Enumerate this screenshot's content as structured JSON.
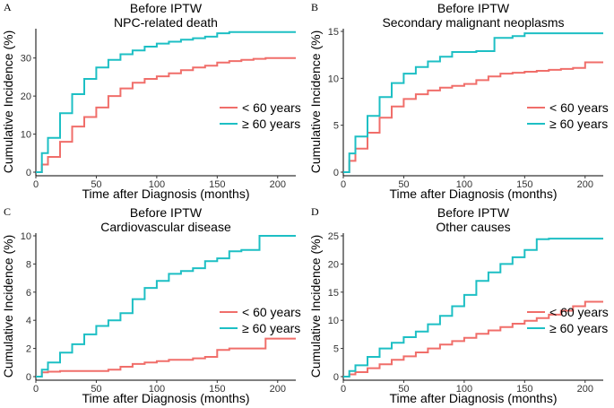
{
  "colors": {
    "under60": "#F06E6A",
    "over60": "#1DBFC4"
  },
  "chart_data": [
    {
      "type": "line",
      "panel": "A",
      "title": "Before IPTW",
      "subtitle": "NPC-related death",
      "xlabel": "Time after Diagnosis (months)",
      "ylabel": "Cumulative Incidence (%)",
      "xlim": [
        0,
        215
      ],
      "ylim": [
        0,
        37
      ],
      "xticks": [
        0,
        50,
        100,
        150,
        200
      ],
      "yticks": [
        0,
        10,
        20,
        30
      ],
      "legend_position": "right",
      "series": [
        {
          "name": "< 60 years",
          "color_key": "under60",
          "x": [
            0,
            5,
            10,
            20,
            30,
            40,
            50,
            60,
            70,
            80,
            90,
            100,
            110,
            120,
            130,
            140,
            150,
            160,
            170,
            180,
            190,
            200,
            215
          ],
          "y": [
            0,
            2,
            4,
            8,
            12,
            14.5,
            17,
            20,
            22,
            23.5,
            24.5,
            25.2,
            26,
            26.8,
            27.5,
            28,
            28.8,
            29.2,
            29.5,
            29.8,
            30,
            30,
            30
          ]
        },
        {
          "name": "≥ 60 years",
          "color_key": "over60",
          "x": [
            0,
            5,
            10,
            20,
            30,
            40,
            50,
            60,
            70,
            80,
            90,
            100,
            110,
            120,
            130,
            140,
            150,
            160,
            170,
            180,
            190,
            200,
            215
          ],
          "y": [
            0,
            5,
            9,
            15.5,
            20.5,
            24.5,
            27.5,
            29.5,
            31,
            32,
            33,
            33.8,
            34.3,
            34.8,
            35.2,
            35.6,
            36.5,
            36.8,
            36.8,
            36.8,
            36.8,
            36.8,
            36.8
          ]
        }
      ]
    },
    {
      "type": "line",
      "panel": "B",
      "title": "Before IPTW",
      "subtitle": "Secondary malignant neoplasms",
      "xlabel": "Time after Diagnosis (months)",
      "ylabel": "Cumulative Incidence (%)",
      "xlim": [
        0,
        215
      ],
      "ylim": [
        0,
        15
      ],
      "xticks": [
        0,
        50,
        100,
        150,
        200
      ],
      "yticks": [
        0,
        5,
        10,
        15
      ],
      "legend_position": "right",
      "series": [
        {
          "name": "< 60 years",
          "color_key": "under60",
          "x": [
            0,
            5,
            10,
            20,
            30,
            40,
            50,
            60,
            70,
            80,
            90,
            100,
            110,
            120,
            130,
            140,
            150,
            160,
            170,
            180,
            190,
            200,
            215
          ],
          "y": [
            0,
            1.2,
            2.5,
            4.2,
            5.8,
            7,
            7.8,
            8.3,
            8.7,
            9,
            9.2,
            9.4,
            9.8,
            10.2,
            10.5,
            10.6,
            10.7,
            10.8,
            10.9,
            11,
            11.1,
            11.7,
            11.7
          ]
        },
        {
          "name": "≥ 60 years",
          "color_key": "over60",
          "x": [
            0,
            5,
            10,
            20,
            30,
            40,
            50,
            60,
            70,
            80,
            90,
            100,
            110,
            120,
            125,
            130,
            140,
            150,
            160,
            170,
            180,
            190,
            215
          ],
          "y": [
            0,
            2,
            3.8,
            6,
            8,
            9.5,
            10.5,
            11.2,
            11.8,
            12.3,
            12.8,
            12.8,
            12.9,
            12.9,
            14.3,
            14.3,
            14.5,
            14.8,
            14.8,
            14.8,
            14.8,
            14.8,
            14.8
          ]
        }
      ]
    },
    {
      "type": "line",
      "panel": "C",
      "title": "Before IPTW",
      "subtitle": "Cardiovascular disease",
      "xlabel": "Time after Diagnosis (months)",
      "ylabel": "Cumulative Incidence (%)",
      "xlim": [
        0,
        215
      ],
      "ylim": [
        0,
        10
      ],
      "xticks": [
        0,
        50,
        100,
        150,
        200
      ],
      "yticks": [
        0,
        2,
        4,
        6,
        8,
        10
      ],
      "legend_position": "right",
      "series": [
        {
          "name": "< 60 years",
          "color_key": "under60",
          "x": [
            0,
            5,
            10,
            20,
            30,
            40,
            50,
            60,
            70,
            80,
            90,
            100,
            110,
            120,
            130,
            140,
            150,
            160,
            170,
            180,
            190,
            200,
            215
          ],
          "y": [
            0,
            0.3,
            0.35,
            0.4,
            0.4,
            0.4,
            0.4,
            0.5,
            0.7,
            0.9,
            1.0,
            1.1,
            1.2,
            1.2,
            1.3,
            1.4,
            1.9,
            2.0,
            2.0,
            2.0,
            2.7,
            2.7,
            2.7
          ]
        },
        {
          "name": "≥ 60 years",
          "color_key": "over60",
          "x": [
            0,
            5,
            10,
            20,
            30,
            40,
            50,
            60,
            70,
            80,
            90,
            100,
            110,
            120,
            130,
            140,
            150,
            160,
            170,
            180,
            185,
            200,
            215
          ],
          "y": [
            0,
            0.5,
            1,
            1.7,
            2.3,
            3,
            3.6,
            4,
            4.5,
            5.5,
            6.3,
            6.8,
            7.3,
            7.5,
            7.7,
            8.2,
            8.4,
            8.9,
            9,
            9,
            10,
            10,
            10
          ]
        }
      ]
    },
    {
      "type": "line",
      "panel": "D",
      "title": "Before IPTW",
      "subtitle": "Other causes",
      "xlabel": "Time after Diagnosis (months)",
      "ylabel": "Cumulative Incidence (%)",
      "xlim": [
        0,
        215
      ],
      "ylim": [
        0,
        25
      ],
      "xticks": [
        0,
        50,
        100,
        150,
        200
      ],
      "yticks": [
        0,
        5,
        10,
        15,
        20,
        25
      ],
      "legend_position": "right",
      "series": [
        {
          "name": "< 60 years",
          "color_key": "under60",
          "x": [
            0,
            5,
            10,
            20,
            30,
            40,
            50,
            60,
            70,
            80,
            90,
            100,
            110,
            120,
            130,
            140,
            150,
            160,
            170,
            180,
            190,
            200,
            215
          ],
          "y": [
            0,
            0.4,
            0.8,
            1.5,
            2.2,
            3,
            3.6,
            4.3,
            5,
            5.7,
            6.3,
            6.9,
            7.6,
            8.2,
            8.8,
            9.4,
            9.9,
            10.4,
            11,
            11.7,
            12.5,
            13.3,
            13.3
          ]
        },
        {
          "name": "≥ 60 years",
          "color_key": "over60",
          "x": [
            0,
            5,
            10,
            20,
            30,
            40,
            50,
            60,
            70,
            80,
            90,
            100,
            110,
            120,
            130,
            140,
            150,
            160,
            170,
            180,
            190,
            200,
            215
          ],
          "y": [
            0,
            1,
            2,
            3.5,
            5,
            6,
            7,
            8,
            9.3,
            10.8,
            12.5,
            14.5,
            17,
            18.5,
            20,
            21.2,
            22.5,
            24.4,
            24.5,
            24.5,
            24.5,
            24.5,
            24.5
          ]
        }
      ]
    }
  ]
}
